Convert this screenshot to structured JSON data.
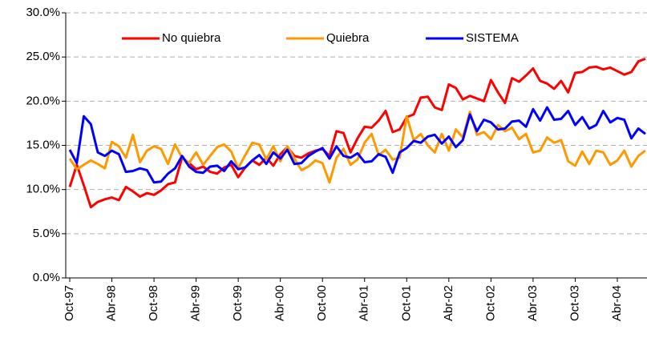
{
  "chart_data": {
    "type": "line",
    "categories": [
      "Oct-97",
      null,
      null,
      null,
      null,
      null,
      "Abr-98",
      null,
      null,
      null,
      null,
      null,
      "Oct-98",
      null,
      null,
      null,
      null,
      null,
      "Abr-99",
      null,
      null,
      null,
      null,
      null,
      "Oct-99",
      null,
      null,
      null,
      null,
      null,
      "Abr-00",
      null,
      null,
      null,
      null,
      null,
      "Oct-00",
      null,
      null,
      null,
      null,
      null,
      "Abr-01",
      null,
      null,
      null,
      null,
      null,
      "Oct-01",
      null,
      null,
      null,
      null,
      null,
      "Abr-02",
      null,
      null,
      null,
      null,
      null,
      "Oct-02",
      null,
      null,
      null,
      null,
      null,
      "Abr-03",
      null,
      null,
      null,
      null,
      null,
      "Oct-03",
      null,
      null,
      null,
      null,
      null,
      "Abr-04",
      null,
      null,
      null,
      null
    ],
    "series": [
      {
        "name": "No quiebra",
        "color": "#ff0000",
        "values": [
          10.3,
          12.8,
          10.5,
          8.0,
          8.6,
          8.9,
          9.1,
          8.8,
          10.3,
          9.8,
          9.2,
          9.6,
          9.4,
          9.9,
          10.6,
          10.8,
          13.6,
          13.0,
          12.3,
          12.6,
          12.0,
          11.8,
          12.5,
          12.8,
          11.4,
          12.5,
          13.3,
          12.8,
          13.6,
          12.7,
          14.0,
          14.8,
          13.8,
          13.6,
          14.1,
          14.4,
          14.6,
          13.8,
          16.6,
          16.4,
          14.2,
          15.8,
          17.1,
          17.0,
          17.8,
          18.9,
          16.5,
          16.8,
          18.2,
          18.5,
          20.4,
          20.5,
          19.3,
          19.0,
          21.9,
          21.5,
          20.2,
          20.6,
          20.3,
          20.0,
          22.4,
          21.0,
          19.8,
          22.6,
          22.2,
          22.9,
          23.7,
          22.3,
          22.0,
          21.4,
          22.3,
          21.0,
          23.2,
          23.3,
          23.8,
          23.9,
          23.6,
          23.8,
          23.4,
          23.0,
          23.3,
          24.5,
          24.8
        ]
      },
      {
        "name": "Quiebra",
        "color": "#ff9900",
        "values": [
          13.5,
          12.3,
          12.8,
          13.3,
          12.9,
          12.4,
          15.4,
          14.9,
          13.6,
          16.2,
          13.1,
          14.4,
          14.9,
          14.6,
          12.9,
          15.1,
          13.6,
          13.0,
          14.2,
          12.8,
          13.8,
          14.8,
          15.1,
          14.3,
          12.4,
          13.9,
          15.3,
          15.1,
          13.4,
          14.9,
          13.2,
          14.9,
          13.5,
          12.2,
          12.6,
          13.3,
          13.0,
          10.8,
          13.6,
          14.6,
          12.8,
          13.4,
          15.3,
          16.3,
          13.9,
          14.5,
          13.4,
          13.6,
          18.3,
          15.6,
          16.3,
          15.0,
          14.2,
          16.3,
          14.4,
          16.8,
          15.9,
          18.8,
          16.2,
          16.5,
          15.7,
          17.3,
          16.6,
          17.0,
          15.7,
          16.3,
          14.2,
          14.4,
          15.9,
          15.3,
          15.6,
          13.2,
          12.7,
          14.3,
          12.9,
          14.4,
          14.2,
          12.8,
          13.3,
          14.4,
          12.6,
          13.8,
          14.4
        ]
      },
      {
        "name": "SISTEMA",
        "color": "#0000ff",
        "values": [
          14.5,
          13.0,
          18.3,
          17.4,
          14.2,
          13.8,
          14.4,
          14.0,
          12.0,
          12.1,
          12.4,
          12.2,
          10.8,
          10.9,
          11.8,
          12.4,
          13.8,
          12.6,
          12.0,
          11.9,
          12.6,
          12.7,
          12.1,
          13.2,
          12.3,
          12.5,
          13.3,
          13.9,
          12.9,
          14.2,
          13.5,
          14.5,
          12.9,
          13.0,
          13.8,
          14.3,
          14.7,
          13.5,
          14.9,
          13.8,
          13.6,
          14.1,
          13.1,
          13.2,
          14.0,
          13.7,
          11.9,
          14.2,
          14.7,
          15.5,
          15.3,
          16.0,
          16.2,
          15.2,
          16.0,
          14.8,
          15.6,
          18.5,
          16.6,
          17.9,
          17.6,
          16.8,
          16.9,
          17.7,
          17.8,
          17.1,
          19.1,
          17.8,
          19.3,
          17.9,
          18.0,
          18.9,
          17.3,
          18.2,
          16.9,
          17.3,
          18.9,
          17.6,
          18.1,
          17.9,
          15.8,
          16.9,
          16.3
        ]
      }
    ],
    "ylim": [
      0,
      30
    ],
    "yticks": [
      {
        "value": 0,
        "label": "0.0%"
      },
      {
        "value": 5,
        "label": "5.0%"
      },
      {
        "value": 10,
        "label": "10.0%"
      },
      {
        "value": 15,
        "label": "15.0%"
      },
      {
        "value": 20,
        "label": "20.0%"
      },
      {
        "value": 25,
        "label": "25.0%"
      },
      {
        "value": 30,
        "label": "30.0%"
      }
    ],
    "grid": true,
    "legend": "top"
  }
}
